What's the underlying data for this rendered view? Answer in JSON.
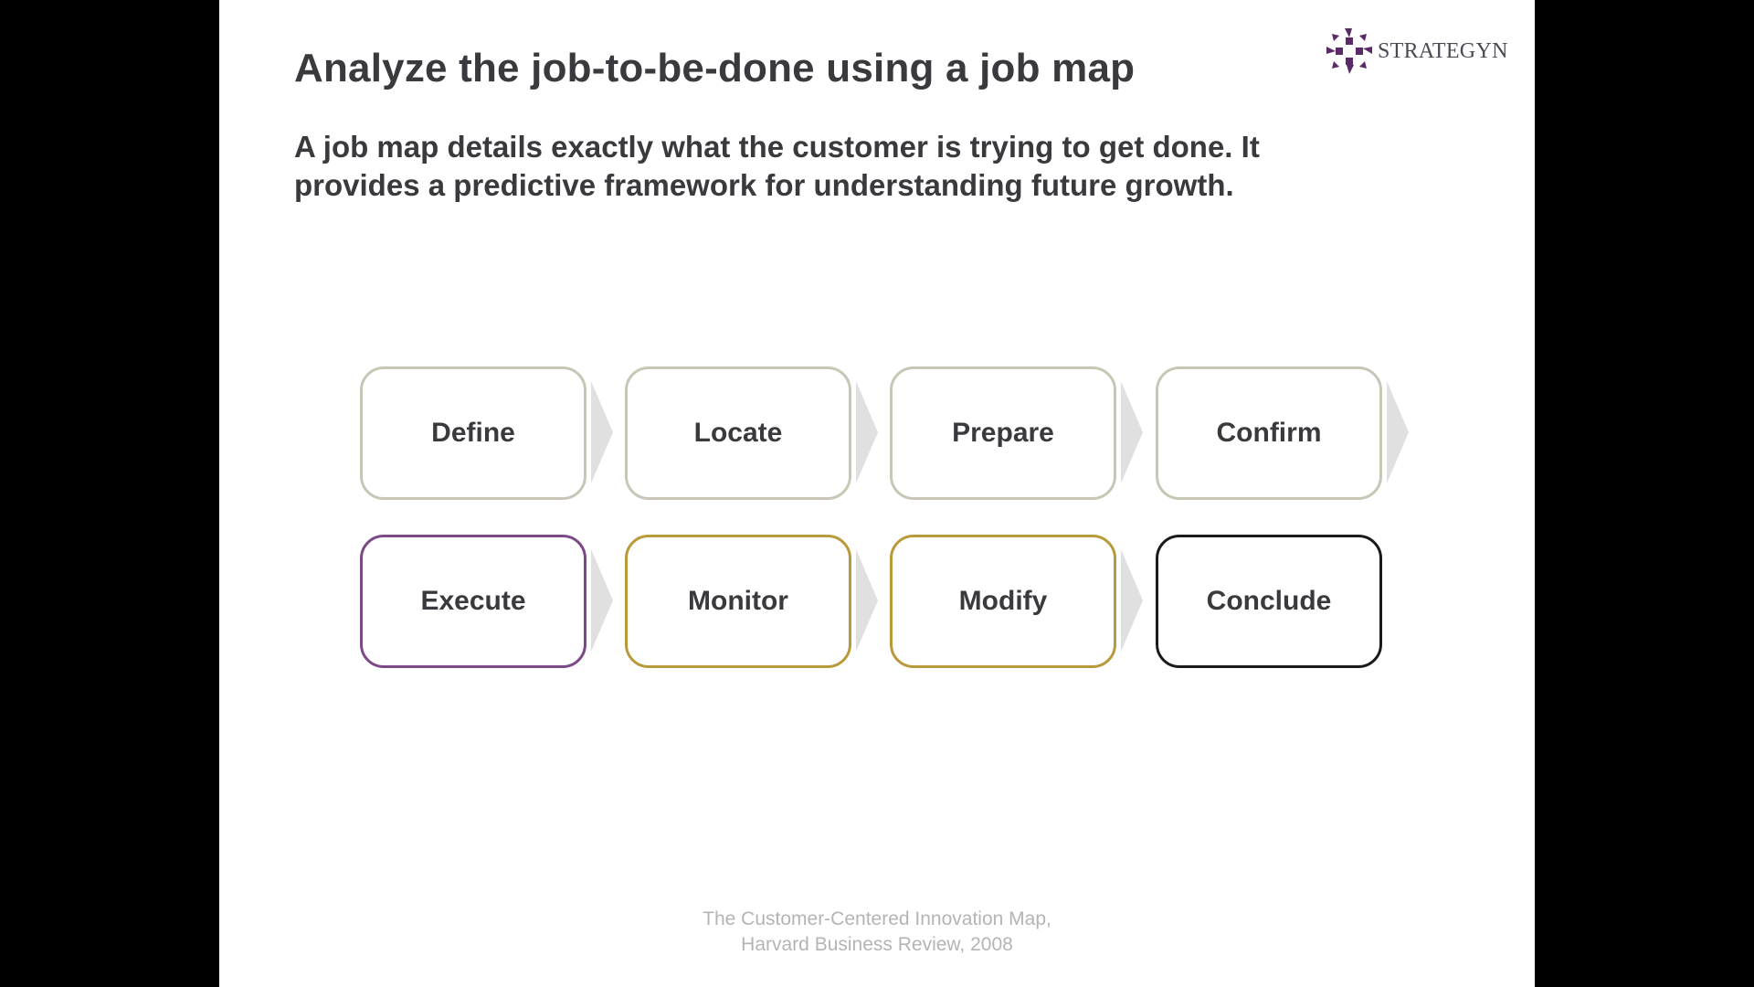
{
  "slide": {
    "title": "Analyze the job-to-be-done using a job map",
    "subtitle": "A job map details exactly what the customer is trying to get done. It provides a predictive framework for understanding future growth."
  },
  "logo": {
    "text": "STRATEGYN",
    "mark_color": "#5a2a66"
  },
  "job_map": {
    "steps": [
      {
        "label": "Define",
        "border": "#c8c6b4"
      },
      {
        "label": "Locate",
        "border": "#c8c6b4"
      },
      {
        "label": "Prepare",
        "border": "#c8c6b4"
      },
      {
        "label": "Confirm",
        "border": "#c8c6b4"
      },
      {
        "label": "Execute",
        "border": "#7b4a86"
      },
      {
        "label": "Monitor",
        "border": "#b89a3a"
      },
      {
        "label": "Modify",
        "border": "#b89a3a"
      },
      {
        "label": "Conclude",
        "border": "#1a1a1a"
      }
    ],
    "arrow_color": "#e0e0e0"
  },
  "footer": {
    "line1": "The Customer-Centered Innovation Map,",
    "line2": "Harvard Business Review, 2008"
  }
}
